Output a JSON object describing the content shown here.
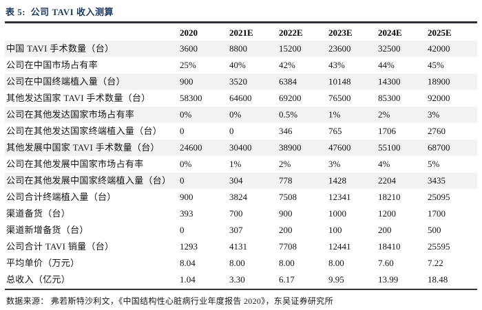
{
  "table": {
    "title": "表 5:  公司 TAVI 收入测算",
    "label_header": "",
    "columns": [
      "2020",
      "2021E",
      "2022E",
      "2023E",
      "2024E",
      "2025E"
    ],
    "rows": [
      {
        "label": "中国 TAVI 手术数量（台）",
        "values": [
          "3600",
          "8800",
          "15200",
          "23600",
          "32500",
          "42000"
        ],
        "shaded": true
      },
      {
        "label": "公司在中国市场占有率",
        "values": [
          "25%",
          "40%",
          "42%",
          "43%",
          "44%",
          "45%"
        ],
        "shaded": false
      },
      {
        "label": "公司在中国终端植入量（台）",
        "values": [
          "900",
          "3520",
          "6384",
          "10148",
          "14300",
          "18900"
        ],
        "shaded": true
      },
      {
        "label": "其他发达国家 TAVI 手术数量（台）",
        "values": [
          "58300",
          "64600",
          "69200",
          "76500",
          "85300",
          "92000"
        ],
        "shaded": false
      },
      {
        "label": "公司在其他发达国家市场占有率",
        "values": [
          "0%",
          "0%",
          "0.5%",
          "1%",
          "2%",
          "3%"
        ],
        "shaded": true
      },
      {
        "label": "公司在其他发达国家终端植入量（台）",
        "values": [
          "0",
          "0",
          "346",
          "765",
          "1706",
          "2760"
        ],
        "shaded": false
      },
      {
        "label": "其他发展中国家 TAVI 手术数量（台）",
        "values": [
          "24600",
          "30400",
          "38900",
          "47600",
          "55100",
          "68700"
        ],
        "shaded": true
      },
      {
        "label": "公司在其他发展中国家市场占有率",
        "values": [
          "0%",
          "1%",
          "2%",
          "3%",
          "4%",
          "5%"
        ],
        "shaded": false
      },
      {
        "label": "公司在其他发展中国家终端植入量（台）",
        "values": [
          "0",
          "304",
          "778",
          "1428",
          "2204",
          "3435"
        ],
        "shaded": true
      },
      {
        "label": "公司合计终端植入量（台）",
        "values": [
          "900",
          "3824",
          "7508",
          "12341",
          "18210",
          "25095"
        ],
        "shaded": false
      },
      {
        "label": "渠道备货（台）",
        "values": [
          "393",
          "700",
          "900",
          "1000",
          "1200",
          "1700"
        ],
        "shaded": false
      },
      {
        "label": "渠道新增备货（台）",
        "values": [
          "0",
          "307",
          "200",
          "100",
          "200",
          "500"
        ],
        "shaded": false
      },
      {
        "label": "公司合计 TAVI 销量（台）",
        "values": [
          "1293",
          "4131",
          "7708",
          "12441",
          "18410",
          "25595"
        ],
        "shaded": false
      },
      {
        "label": "平均单价（万元）",
        "values": [
          "8.04",
          "8.00",
          "8.00",
          "8.00",
          "7.60",
          "7.22"
        ],
        "shaded": false
      },
      {
        "label": "总收入（亿元）",
        "values": [
          "1.04",
          "3.30",
          "6.17",
          "9.95",
          "13.99",
          "18.48"
        ],
        "shaded": false
      }
    ],
    "source": "数据来源： 弗若斯特沙利文，《中国结构性心脏病行业年度报告 2020》，东吴证券研究所"
  },
  "colors": {
    "title_navy": "#1f3a60",
    "rule_dark": "#2e3038",
    "shaded_row_bg": "#f2f2f2",
    "body_text": "#141414"
  }
}
